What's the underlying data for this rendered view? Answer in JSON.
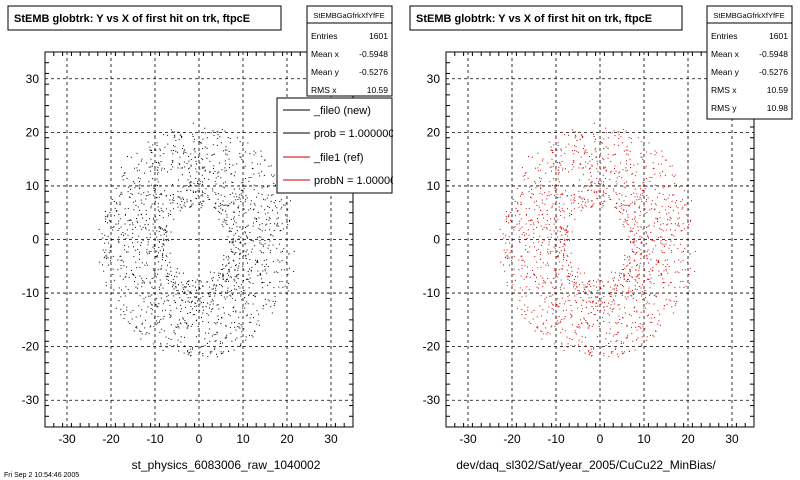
{
  "chart_data": [
    {
      "type": "scatter",
      "title": "StEMB globtrk: Y vs X of first hit on trk, ftpcE",
      "xlabel": "st_physics_6083006_raw_1040002",
      "ylabel": "",
      "xlim": [
        -35,
        35
      ],
      "ylim": [
        -35,
        35
      ],
      "xticks": [
        -30,
        -20,
        -10,
        0,
        10,
        20,
        30
      ],
      "yticks": [
        -30,
        -20,
        -10,
        0,
        10,
        20,
        30
      ],
      "grid": true,
      "marker_color": "#000000",
      "series": [
        {
          "name": "_file0 (new)",
          "n_points": 1601
        }
      ],
      "stats": {
        "name": "StEMBGaGfrkXfYfFE",
        "rows": [
          {
            "label": "Entries",
            "value": "1601"
          },
          {
            "label": "Mean x",
            "value": "-0.5948"
          },
          {
            "label": "Mean y",
            "value": "-0.5276"
          },
          {
            "label": "RMS x",
            "value": "10.59"
          }
        ]
      },
      "legend": {
        "placement": "top-right",
        "entries": [
          {
            "label": "_file0 (new)",
            "color": "#000000"
          },
          {
            "label": "prob = 1.000000",
            "color": "#000000"
          },
          {
            "label": "_file1 (ref)",
            "color": "#cc0000"
          },
          {
            "label": "probN = 1.000000",
            "color": "#cc0000"
          }
        ]
      }
    },
    {
      "type": "scatter",
      "title": "StEMB globtrk: Y vs X of first hit on trk, ftpcE",
      "xlabel": "dev/daq_sl302/Sat/year_2005/CuCu22_MinBias/",
      "ylabel": "",
      "xlim": [
        -35,
        35
      ],
      "ylim": [
        -35,
        35
      ],
      "xticks": [
        -30,
        -20,
        -10,
        0,
        10,
        20,
        30
      ],
      "yticks": [
        -30,
        -20,
        -10,
        0,
        10,
        20,
        30
      ],
      "grid": true,
      "marker_color": "#cc0000",
      "series": [
        {
          "name": "_file1 (ref)",
          "n_points": 1601
        }
      ],
      "stats": {
        "name": "StEMBGaGfrkXfYfFE",
        "rows": [
          {
            "label": "Entries",
            "value": "1601"
          },
          {
            "label": "Mean x",
            "value": "-0.5948"
          },
          {
            "label": "Mean y",
            "value": "-0.5276"
          },
          {
            "label": "RMS x",
            "value": "10.59"
          },
          {
            "label": "RMS y",
            "value": "10.98"
          }
        ]
      }
    }
  ],
  "footer_text": "Fri Sep 2 10:54:46 2005"
}
